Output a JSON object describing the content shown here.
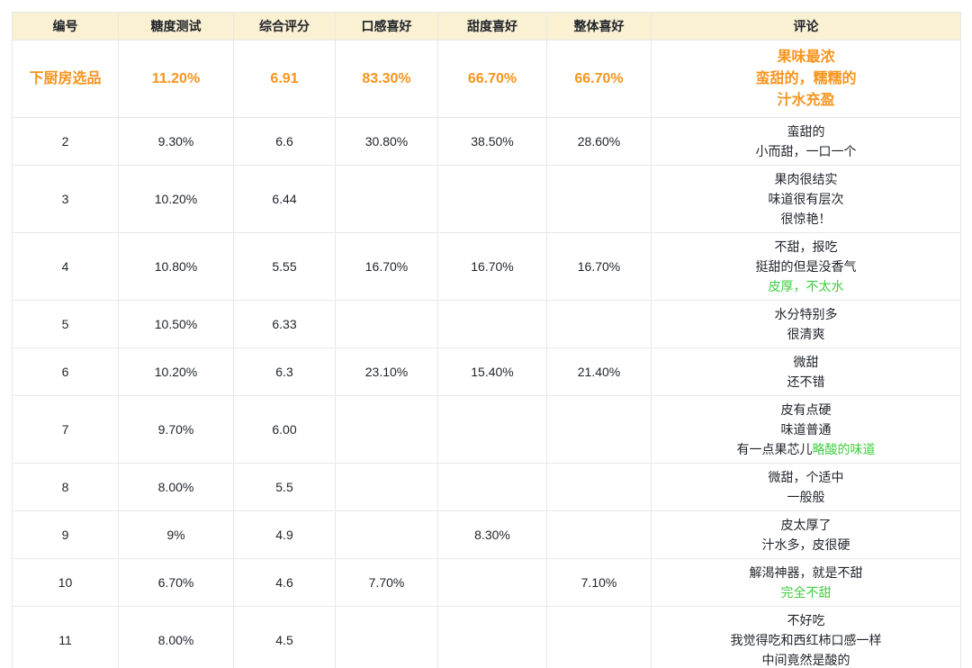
{
  "colors": {
    "header_bg": "#FAF0D2",
    "border": "#E8E8E8",
    "text": "#1F2329",
    "accent_orange": "#F7941E",
    "accent_green": "#3FCE3F"
  },
  "table": {
    "columns": [
      {
        "key": "id",
        "label": "编号"
      },
      {
        "key": "sugar",
        "label": "糖度测试"
      },
      {
        "key": "score",
        "label": "综合评分"
      },
      {
        "key": "texture",
        "label": "口感喜好"
      },
      {
        "key": "sweetness",
        "label": "甜度喜好"
      },
      {
        "key": "overall",
        "label": "整体喜好"
      },
      {
        "key": "comment",
        "label": "评论"
      }
    ],
    "rows": [
      {
        "highlight": true,
        "id": "下厨房选品",
        "sugar": "11.20%",
        "score": "6.91",
        "texture": "83.30%",
        "sweetness": "66.70%",
        "overall": "66.70%",
        "comment": [
          [
            {
              "t": "果味最浓"
            }
          ],
          [
            {
              "t": "蛮甜的，糯糯的"
            }
          ],
          [
            {
              "t": "汁水充盈"
            }
          ]
        ]
      },
      {
        "highlight": false,
        "id": "2",
        "sugar": "9.30%",
        "score": "6.6",
        "texture": "30.80%",
        "sweetness": "38.50%",
        "overall": "28.60%",
        "comment": [
          [
            {
              "t": "蛮甜的"
            }
          ],
          [
            {
              "t": "小而甜，一口一个"
            }
          ]
        ]
      },
      {
        "highlight": false,
        "id": "3",
        "sugar": "10.20%",
        "score": "6.44",
        "texture": "",
        "sweetness": "",
        "overall": "",
        "comment": [
          [
            {
              "t": "果肉很结实"
            }
          ],
          [
            {
              "t": "味道很有层次"
            }
          ],
          [
            {
              "t": "很惊艳！"
            }
          ]
        ]
      },
      {
        "highlight": false,
        "id": "4",
        "sugar": "10.80%",
        "score": "5.55",
        "texture": "16.70%",
        "sweetness": "16.70%",
        "overall": "16.70%",
        "comment": [
          [
            {
              "t": "不甜，报吃"
            }
          ],
          [
            {
              "t": "挺甜的但是没香气"
            }
          ],
          [
            {
              "t": "皮厚，不太水",
              "c": "green"
            }
          ]
        ]
      },
      {
        "highlight": false,
        "id": "5",
        "sugar": "10.50%",
        "score": "6.33",
        "texture": "",
        "sweetness": "",
        "overall": "",
        "comment": [
          [
            {
              "t": "水分特别多"
            }
          ],
          [
            {
              "t": "很清爽"
            }
          ]
        ]
      },
      {
        "highlight": false,
        "id": "6",
        "sugar": "10.20%",
        "score": "6.3",
        "texture": "23.10%",
        "sweetness": "15.40%",
        "overall": "21.40%",
        "comment": [
          [
            {
              "t": "微甜"
            }
          ],
          [
            {
              "t": "还不错"
            }
          ]
        ]
      },
      {
        "highlight": false,
        "id": "7",
        "sugar": "9.70%",
        "score": "6.00",
        "texture": "",
        "sweetness": "",
        "overall": "",
        "comment": [
          [
            {
              "t": "皮有点硬"
            }
          ],
          [
            {
              "t": "味道普通"
            }
          ],
          [
            {
              "t": "有一点果芯儿"
            },
            {
              "t": "略酸的味道",
              "c": "green"
            }
          ]
        ]
      },
      {
        "highlight": false,
        "id": "8",
        "sugar": "8.00%",
        "score": "5.5",
        "texture": "",
        "sweetness": "",
        "overall": "",
        "comment": [
          [
            {
              "t": "微甜，个适中"
            }
          ],
          [
            {
              "t": "一般般"
            }
          ]
        ]
      },
      {
        "highlight": false,
        "id": "9",
        "sugar": "9%",
        "score": "4.9",
        "texture": "",
        "sweetness": "8.30%",
        "overall": "",
        "comment": [
          [
            {
              "t": "皮太厚了"
            }
          ],
          [
            {
              "t": "汁水多，皮很硬"
            }
          ]
        ]
      },
      {
        "highlight": false,
        "id": "10",
        "sugar": "6.70%",
        "score": "4.6",
        "texture": "7.70%",
        "sweetness": "",
        "overall": "7.10%",
        "comment": [
          [
            {
              "t": "解渴神器，就是不甜"
            }
          ],
          [
            {
              "t": "完全不甜",
              "c": "green"
            }
          ]
        ]
      },
      {
        "highlight": false,
        "id": "11",
        "sugar": "8.00%",
        "score": "4.5",
        "texture": "",
        "sweetness": "",
        "overall": "",
        "comment": [
          [
            {
              "t": "不好吃"
            }
          ],
          [
            {
              "t": "我觉得吃和西红柿口感一样"
            }
          ],
          [
            {
              "t": "中间竟然是酸的"
            }
          ]
        ]
      }
    ]
  }
}
